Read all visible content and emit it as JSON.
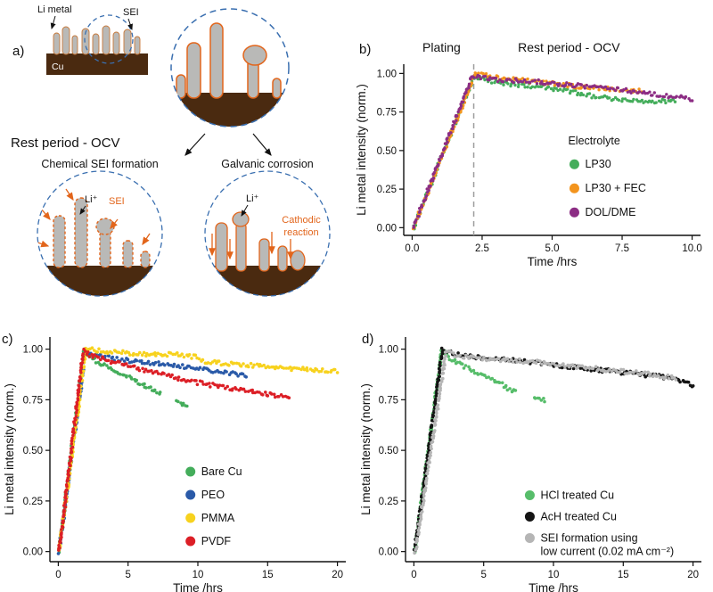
{
  "figure": {
    "panel_labels": {
      "a": "a)",
      "b": "b)",
      "c": "c)",
      "d": "d)"
    }
  },
  "panel_a": {
    "li_metal": "Li metal",
    "sei_top": "SEI",
    "cu": "Cu",
    "rest_ocv": "Rest period - OCV",
    "chemical_title": "Chemical SEI formation",
    "galvanic_title": "Galvanic corrosion",
    "li_plus_left": "Li⁺",
    "sei_left": "SEI",
    "li_plus_right": "Li⁺",
    "cathodic_lines": [
      "Cathodic",
      "reaction"
    ],
    "colors": {
      "copper": "#4a2a10",
      "dendrite": "#b9b9b7",
      "sei_orange": "#e2651b",
      "circle_blue": "#3a6fb0"
    }
  },
  "chart_data": [
    {
      "panel": "b",
      "panel_label": "b)",
      "label_pos": [
        8,
        52
      ],
      "type": "scatter",
      "xlabel": "Time /hrs",
      "ylabel": "Li metal intensity (norm.)",
      "xlim": [
        0,
        10
      ],
      "ylim": [
        0,
        1
      ],
      "xticks": {
        "values": [
          0,
          2.5,
          5,
          7.5,
          10
        ],
        "labels": [
          "0.0",
          "2.5",
          "5.0",
          "7.5",
          "10.0"
        ]
      },
      "yticks": {
        "values": [
          0,
          0.25,
          0.5,
          0.75,
          1
        ],
        "labels": [
          "0.00",
          "0.25",
          "0.50",
          "0.75",
          "1.00"
        ]
      },
      "plot": {
        "l": 58,
        "t": 64,
        "r": 391,
        "b": 256
      },
      "dot_r": 1.7,
      "vline": {
        "x": 2.2,
        "color": "#9e9e9e"
      },
      "annotations": [
        {
          "text": "Plating",
          "x": 1.05
        },
        {
          "text": "Rest period - OCV",
          "x": 5.6
        }
      ],
      "legend": {
        "title": "Electrolyte",
        "fx": 0.575,
        "fy": 0.47,
        "title_gap": 26,
        "spacing": 27,
        "lineh": 15
      },
      "series": [
        {
          "name": "LP30",
          "color": "#44ad5b",
          "anchors": [
            [
              0.05,
              0
            ],
            [
              2.2,
              0.98
            ],
            [
              2.6,
              0.96
            ],
            [
              3.5,
              0.93
            ],
            [
              4.5,
              0.915
            ],
            [
              5.5,
              0.89
            ],
            [
              6.2,
              0.86
            ],
            [
              7.0,
              0.84
            ],
            [
              7.8,
              0.825
            ],
            [
              8.6,
              0.815
            ],
            [
              9.4,
              0.825
            ]
          ]
        },
        {
          "name": "LP30 + FEC",
          "color": "#f3941d",
          "anchors": [
            [
              0.05,
              0
            ],
            [
              2.25,
              1.0
            ],
            [
              3.0,
              0.975
            ],
            [
              4.0,
              0.955
            ],
            [
              5.0,
              0.935
            ],
            [
              6.0,
              0.915
            ],
            [
              7.0,
              0.9
            ],
            [
              8.2,
              0.885
            ]
          ]
        },
        {
          "name": "DOL/DME",
          "color": "#8c2d84",
          "anchors": [
            [
              0.05,
              0
            ],
            [
              2.15,
              0.985
            ],
            [
              3.0,
              0.96
            ],
            [
              4.5,
              0.945
            ],
            [
              6.0,
              0.92
            ],
            [
              7.5,
              0.895
            ],
            [
              8.8,
              0.86
            ],
            [
              9.6,
              0.845
            ],
            [
              10.0,
              0.835
            ]
          ]
        }
      ]
    },
    {
      "panel": "c",
      "panel_label": "c)",
      "label_pos": [
        2,
        40
      ],
      "type": "scatter",
      "xlabel": "Time /hrs",
      "ylabel": "Li metal intensity (norm.)",
      "xlim": [
        0,
        20
      ],
      "ylim": [
        0,
        1
      ],
      "xticks": {
        "values": [
          0,
          5,
          10,
          15,
          20
        ],
        "labels": [
          "0",
          "5",
          "10",
          "15",
          "20"
        ]
      },
      "yticks": {
        "values": [
          0,
          0.25,
          0.5,
          0.75,
          1
        ],
        "labels": [
          "0.00",
          "0.25",
          "0.50",
          "0.75",
          "1.00"
        ]
      },
      "plot": {
        "l": 56,
        "t": 33,
        "r": 388,
        "b": 285
      },
      "dot_r": 1.8,
      "legend": {
        "fx": 0.475,
        "fy": 0.615,
        "spacing": 26,
        "lineh": 15
      },
      "series": [
        {
          "name": "Bare Cu",
          "color": "#44ad5b",
          "gaps": [
            [
              7.35,
              8.45
            ]
          ],
          "anchors": [
            [
              0.05,
              0
            ],
            [
              1.85,
              0.995
            ],
            [
              2.3,
              0.96
            ],
            [
              3.2,
              0.925
            ],
            [
              4.2,
              0.89
            ],
            [
              5.2,
              0.855
            ],
            [
              6.0,
              0.83
            ],
            [
              6.8,
              0.8
            ],
            [
              7.2,
              0.785
            ],
            [
              8.5,
              0.74
            ],
            [
              9.2,
              0.715
            ]
          ]
        },
        {
          "name": "PEO",
          "color": "#2a5aa8",
          "anchors": [
            [
              0.05,
              0
            ],
            [
              1.95,
              0.99
            ],
            [
              3.0,
              0.965
            ],
            [
              5.0,
              0.945
            ],
            [
              7.0,
              0.93
            ],
            [
              9.0,
              0.915
            ],
            [
              11.0,
              0.895
            ],
            [
              12.5,
              0.88
            ],
            [
              13.5,
              0.87
            ]
          ]
        },
        {
          "name": "PMMA",
          "color": "#f7d21e",
          "anchors": [
            [
              0.05,
              0
            ],
            [
              2.0,
              1.0
            ],
            [
              4.0,
              0.985
            ],
            [
              6.5,
              0.975
            ],
            [
              8.5,
              0.975
            ],
            [
              10.0,
              0.96
            ],
            [
              10.5,
              0.94
            ],
            [
              12.5,
              0.925
            ],
            [
              15.0,
              0.915
            ],
            [
              17.5,
              0.9
            ],
            [
              20.0,
              0.89
            ]
          ]
        },
        {
          "name": "PVDF",
          "color": "#dc1f26",
          "anchors": [
            [
              0.05,
              0
            ],
            [
              1.8,
              0.99
            ],
            [
              2.5,
              0.965
            ],
            [
              4.0,
              0.935
            ],
            [
              6.0,
              0.9
            ],
            [
              8.0,
              0.865
            ],
            [
              10.0,
              0.835
            ],
            [
              12.0,
              0.81
            ],
            [
              14.0,
              0.79
            ],
            [
              16.5,
              0.76
            ]
          ]
        }
      ]
    },
    {
      "panel": "d",
      "panel_label": "d)",
      "label_pos": [
        6,
        40
      ],
      "type": "scatter",
      "xlabel": "Time /hrs",
      "ylabel": "Li metal intensity (norm.)",
      "xlim": [
        0,
        20
      ],
      "ylim": [
        0,
        1
      ],
      "xticks": {
        "values": [
          0,
          5,
          10,
          15,
          20
        ],
        "labels": [
          "0",
          "5",
          "10",
          "15",
          "20"
        ]
      },
      "yticks": {
        "values": [
          0,
          0.25,
          0.5,
          0.75,
          1
        ],
        "labels": [
          "0.00",
          "0.25",
          "0.50",
          "0.75",
          "1.00"
        ]
      },
      "plot": {
        "l": 55,
        "t": 33,
        "r": 387,
        "b": 285
      },
      "dot_r": 1.8,
      "legend": {
        "fx": 0.42,
        "fy": 0.72,
        "spacing": 24,
        "lineh": 15
      },
      "series": [
        {
          "name": "HCl treated Cu",
          "color": "#57bd6a",
          "gaps": [
            [
              7.35,
              8.55
            ]
          ],
          "anchors": [
            [
              0.05,
              0
            ],
            [
              2.0,
              0.995
            ],
            [
              2.6,
              0.955
            ],
            [
              3.5,
              0.92
            ],
            [
              4.5,
              0.885
            ],
            [
              5.5,
              0.85
            ],
            [
              6.3,
              0.825
            ],
            [
              7.2,
              0.79
            ],
            [
              8.6,
              0.76
            ],
            [
              9.4,
              0.745
            ]
          ]
        },
        {
          "name": "AcH treated Cu",
          "color": "#141414",
          "anchors": [
            [
              0.05,
              0
            ],
            [
              2.05,
              1.0
            ],
            [
              3.0,
              0.975
            ],
            [
              5.0,
              0.955
            ],
            [
              7.0,
              0.945
            ],
            [
              9.0,
              0.93
            ],
            [
              11.0,
              0.915
            ],
            [
              13.0,
              0.9
            ],
            [
              15.0,
              0.885
            ],
            [
              17.0,
              0.87
            ],
            [
              18.5,
              0.855
            ],
            [
              19.5,
              0.84
            ],
            [
              20.0,
              0.815
            ]
          ]
        },
        {
          "name": "SEI formation using\nlow current (0.02 mA cm⁻²)",
          "color": "#b5b5b5",
          "anchors": [
            [
              0.1,
              0
            ],
            [
              2.3,
              0.99
            ],
            [
              3.2,
              0.965
            ],
            [
              5.0,
              0.95
            ],
            [
              7.0,
              0.945
            ],
            [
              9.0,
              0.935
            ],
            [
              11.0,
              0.92
            ],
            [
              13.0,
              0.905
            ],
            [
              15.0,
              0.89
            ],
            [
              17.0,
              0.875
            ],
            [
              18.8,
              0.855
            ]
          ]
        }
      ]
    }
  ]
}
